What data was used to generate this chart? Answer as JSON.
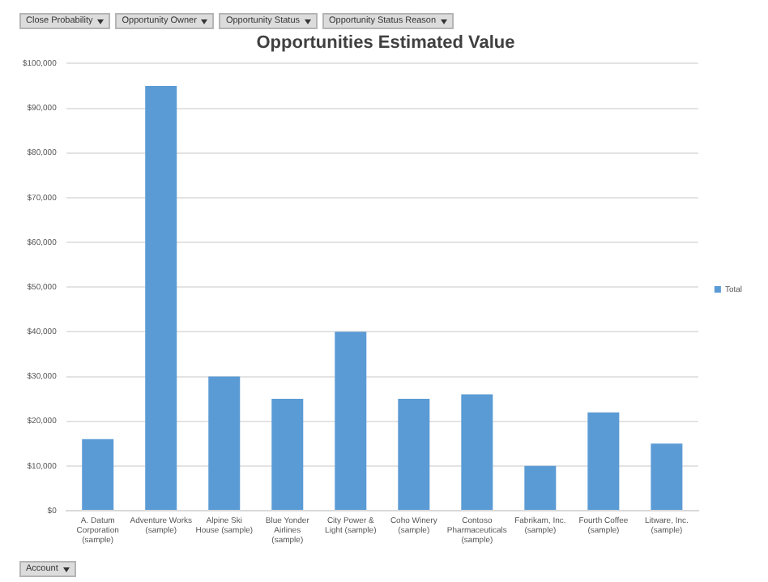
{
  "chart_data": {
    "type": "bar",
    "title": "Opportunities Estimated Value",
    "categories": [
      "A. Datum Corporation (sample)",
      "Adventure Works (sample)",
      "Alpine Ski House (sample)",
      "Blue Yonder Airlines (sample)",
      "City Power & Light (sample)",
      "Coho Winery (sample)",
      "Contoso Pharmaceuticals (sample)",
      "Fabrikam, Inc. (sample)",
      "Fourth Coffee (sample)",
      "Litware, Inc. (sample)"
    ],
    "series": [
      {
        "name": "Total",
        "color": "#5b9bd5",
        "values": [
          16000,
          95000,
          30000,
          25000,
          40000,
          25000,
          26000,
          10000,
          22000,
          15000
        ]
      }
    ],
    "ylim": [
      0,
      100000
    ],
    "yticks": [
      {
        "value": 0,
        "label": "$0"
      },
      {
        "value": 10000,
        "label": "$10,000"
      },
      {
        "value": 20000,
        "label": "$20,000"
      },
      {
        "value": 30000,
        "label": "$30,000"
      },
      {
        "value": 40000,
        "label": "$40,000"
      },
      {
        "value": 50000,
        "label": "$50,000"
      },
      {
        "value": 60000,
        "label": "$60,000"
      },
      {
        "value": 70000,
        "label": "$70,000"
      },
      {
        "value": 80000,
        "label": "$80,000"
      },
      {
        "value": 90000,
        "label": "$90,000"
      },
      {
        "value": 100000,
        "label": "$100,000"
      }
    ],
    "grid": "y",
    "legend": "right",
    "annotations": [
      "Close Probability",
      "Opportunity Owner",
      "Opportunity Status",
      "Opportunity Status Reason",
      "Account"
    ]
  }
}
